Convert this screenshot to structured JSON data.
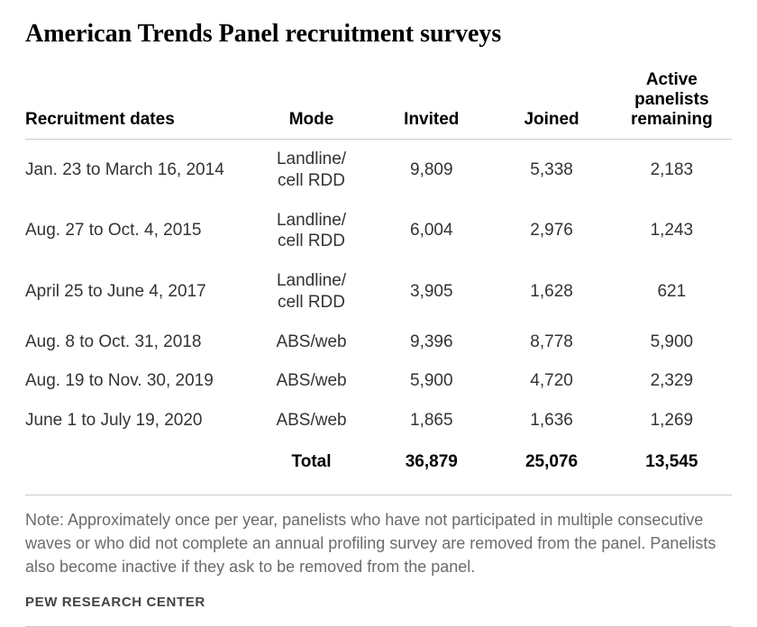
{
  "title": "American Trends Panel recruitment surveys",
  "title_fontsize": 28,
  "table": {
    "header_fontsize": 19,
    "body_fontsize": 19,
    "columns": [
      {
        "label": "Recruitment dates",
        "align": "left"
      },
      {
        "label": "Mode",
        "align": "center"
      },
      {
        "label": "Invited",
        "align": "center"
      },
      {
        "label": "Joined",
        "align": "center"
      },
      {
        "label": "Active panelists remaining",
        "align": "center"
      }
    ],
    "rows": [
      {
        "dates": "Jan. 23 to March 16, 2014",
        "mode": "Landline/\ncell RDD",
        "invited": "9,809",
        "joined": "5,338",
        "remaining": "2,183"
      },
      {
        "dates": "Aug. 27 to Oct. 4, 2015",
        "mode": "Landline/\ncell RDD",
        "invited": "6,004",
        "joined": "2,976",
        "remaining": "1,243"
      },
      {
        "dates": "April 25 to June 4, 2017",
        "mode": "Landline/\ncell RDD",
        "invited": "3,905",
        "joined": "1,628",
        "remaining": "621"
      },
      {
        "dates": "Aug. 8 to Oct. 31, 2018",
        "mode": "ABS/web",
        "invited": "9,396",
        "joined": "8,778",
        "remaining": "5,900"
      },
      {
        "dates": "Aug. 19 to Nov. 30, 2019",
        "mode": "ABS/web",
        "invited": "5,900",
        "joined": "4,720",
        "remaining": "2,329"
      },
      {
        "dates": "June 1 to July 19, 2020",
        "mode": "ABS/web",
        "invited": "1,865",
        "joined": "1,636",
        "remaining": "1,269"
      }
    ],
    "total": {
      "label": "Total",
      "invited": "36,879",
      "joined": "25,076",
      "remaining": "13,545"
    }
  },
  "note": "Note: Approximately once per year, panelists who have not participated in multiple consecutive waves or who did not complete an annual profiling survey are removed from the panel. Panelists also become inactive if they ask to be removed from the panel.",
  "note_fontsize": 18,
  "source": "PEW RESEARCH CENTER",
  "source_fontsize": 15,
  "colors": {
    "text": "#333333",
    "heading": "#000000",
    "muted": "#6b6b6b",
    "border": "#c9c9c9",
    "background": "#ffffff"
  }
}
